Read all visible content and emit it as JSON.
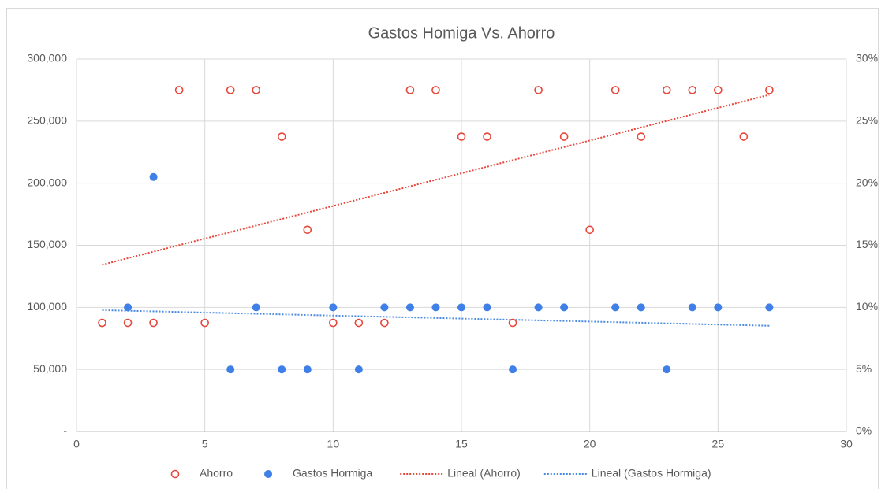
{
  "chart_data": {
    "type": "scatter",
    "title": "Gastos Homiga Vs. Ahorro",
    "xlim": [
      0,
      30
    ],
    "xticks": [
      0,
      5,
      10,
      15,
      20,
      25,
      30
    ],
    "ylim": [
      0,
      300000
    ],
    "yticks": [
      {
        "value": 0,
        "label": "-"
      },
      {
        "value": 50000,
        "label": "50,000"
      },
      {
        "value": 100000,
        "label": "100,000"
      },
      {
        "value": 150000,
        "label": "150,000"
      },
      {
        "value": 200000,
        "label": "200,000"
      },
      {
        "value": 250000,
        "label": "250,000"
      },
      {
        "value": 300000,
        "label": "300,000"
      }
    ],
    "y2lim": [
      0,
      30
    ],
    "y2ticks": [
      {
        "value": 0,
        "label": "0%"
      },
      {
        "value": 5,
        "label": "5%"
      },
      {
        "value": 10,
        "label": "10%"
      },
      {
        "value": 15,
        "label": "15%"
      },
      {
        "value": 20,
        "label": "20%"
      },
      {
        "value": 25,
        "label": "25%"
      },
      {
        "value": 30,
        "label": "30%"
      }
    ],
    "grid": true,
    "legend": "bottom",
    "series": [
      {
        "name": "Ahorro",
        "color": "#e8463a",
        "marker": "open",
        "axis": "y2",
        "x": [
          1,
          2,
          3,
          4,
          5,
          6,
          7,
          8,
          9,
          10,
          11,
          12,
          13,
          14,
          15,
          16,
          17,
          18,
          19,
          20,
          21,
          22,
          23,
          24,
          25,
          26,
          27
        ],
        "values": [
          8.75,
          8.75,
          8.75,
          27.5,
          8.75,
          27.5,
          27.5,
          23.75,
          16.25,
          8.75,
          8.75,
          8.75,
          27.5,
          27.5,
          23.75,
          23.75,
          8.75,
          27.5,
          23.75,
          16.25,
          27.5,
          23.75,
          27.5,
          27.5,
          27.5,
          23.75,
          27.5
        ],
        "trendline": {
          "name": "Lineal (Ahorro)",
          "color": "#e8463a"
        }
      },
      {
        "name": "Gastos Hormiga",
        "color": "#3f7fe8",
        "marker": "filled",
        "x": [
          2,
          3,
          6,
          7,
          8,
          9,
          10,
          11,
          12,
          13,
          14,
          15,
          16,
          17,
          18,
          19,
          21,
          22,
          23,
          24,
          25,
          27
        ],
        "values": [
          100000,
          205000,
          50000,
          100000,
          50000,
          50000,
          100000,
          50000,
          100000,
          100000,
          100000,
          100000,
          100000,
          50000,
          100000,
          100000,
          100000,
          100000,
          50000,
          100000,
          100000,
          100000
        ],
        "trendline": {
          "name": "Lineal (Gastos Hormiga)",
          "color": "#4a8ae0"
        }
      }
    ]
  }
}
